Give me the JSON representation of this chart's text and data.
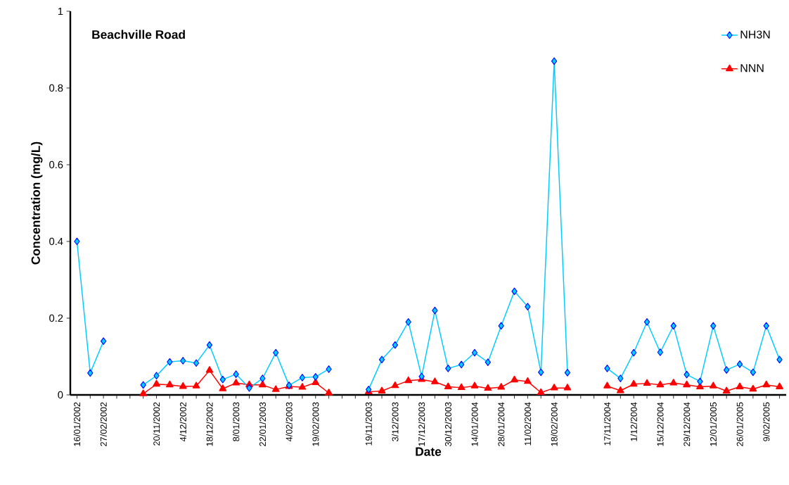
{
  "chart_data": {
    "type": "line",
    "title": "Beachville Road",
    "xlabel": "Date",
    "ylabel": "Concentration (mg/L)",
    "categories": [
      "16/01/2002",
      null,
      "27/02/2002",
      null,
      null,
      null,
      "20/11/2002",
      null,
      "4/12/2002",
      null,
      "18/12/2002",
      null,
      "8/01/2003",
      null,
      "22/01/2003",
      null,
      "4/02/2003",
      null,
      "19/02/2003",
      null,
      null,
      null,
      "19/11/2003",
      null,
      "3/12/2003",
      null,
      "17/12/2003",
      null,
      "30/12/2003",
      null,
      "14/01/2004",
      null,
      "28/01/2004",
      null,
      "11/02/2004",
      null,
      "18/02/2004",
      null,
      null,
      null,
      "17/11/2004",
      null,
      "1/12/2004",
      null,
      "15/12/2004",
      null,
      "29/12/2004",
      null,
      "12/01/2005",
      null,
      "26/01/2005",
      null,
      "9/02/2005",
      null
    ],
    "series": [
      {
        "name": "NH3N",
        "color": "#00ccff",
        "marker": "diamond",
        "values": [
          0.4,
          0.057,
          0.14,
          null,
          null,
          0.026,
          0.05,
          0.086,
          0.089,
          0.083,
          0.13,
          0.04,
          0.054,
          0.018,
          0.043,
          0.11,
          0.025,
          0.045,
          0.047,
          0.067,
          null,
          null,
          0.014,
          0.092,
          0.13,
          0.19,
          0.048,
          0.22,
          0.069,
          0.079,
          0.11,
          0.085,
          0.18,
          0.27,
          0.23,
          0.059,
          0.87,
          0.058,
          null,
          null,
          0.069,
          0.043,
          0.11,
          0.19,
          0.111,
          0.18,
          0.053,
          0.035,
          0.18,
          0.065,
          0.08,
          0.059,
          0.18,
          0.092
        ]
      },
      {
        "name": "NNN",
        "color": "#ff0000",
        "marker": "triangle",
        "values": [
          null,
          null,
          null,
          null,
          null,
          0.003,
          0.028,
          0.026,
          0.022,
          0.023,
          0.064,
          0.016,
          0.031,
          0.026,
          0.026,
          0.014,
          0.022,
          0.02,
          0.032,
          0.005,
          null,
          null,
          0.008,
          0.01,
          0.024,
          0.037,
          0.04,
          0.034,
          0.021,
          0.019,
          0.023,
          0.017,
          0.02,
          0.039,
          0.035,
          0.006,
          0.018,
          0.018,
          null,
          null,
          0.023,
          0.011,
          0.028,
          0.03,
          0.026,
          0.031,
          0.026,
          0.021,
          0.023,
          0.01,
          0.021,
          0.015,
          0.026,
          0.021
        ]
      }
    ],
    "ylim": [
      0,
      1
    ],
    "yticks": [
      0,
      0.2,
      0.4,
      0.6,
      0.8,
      1
    ],
    "grid": false,
    "legend": "top right"
  }
}
